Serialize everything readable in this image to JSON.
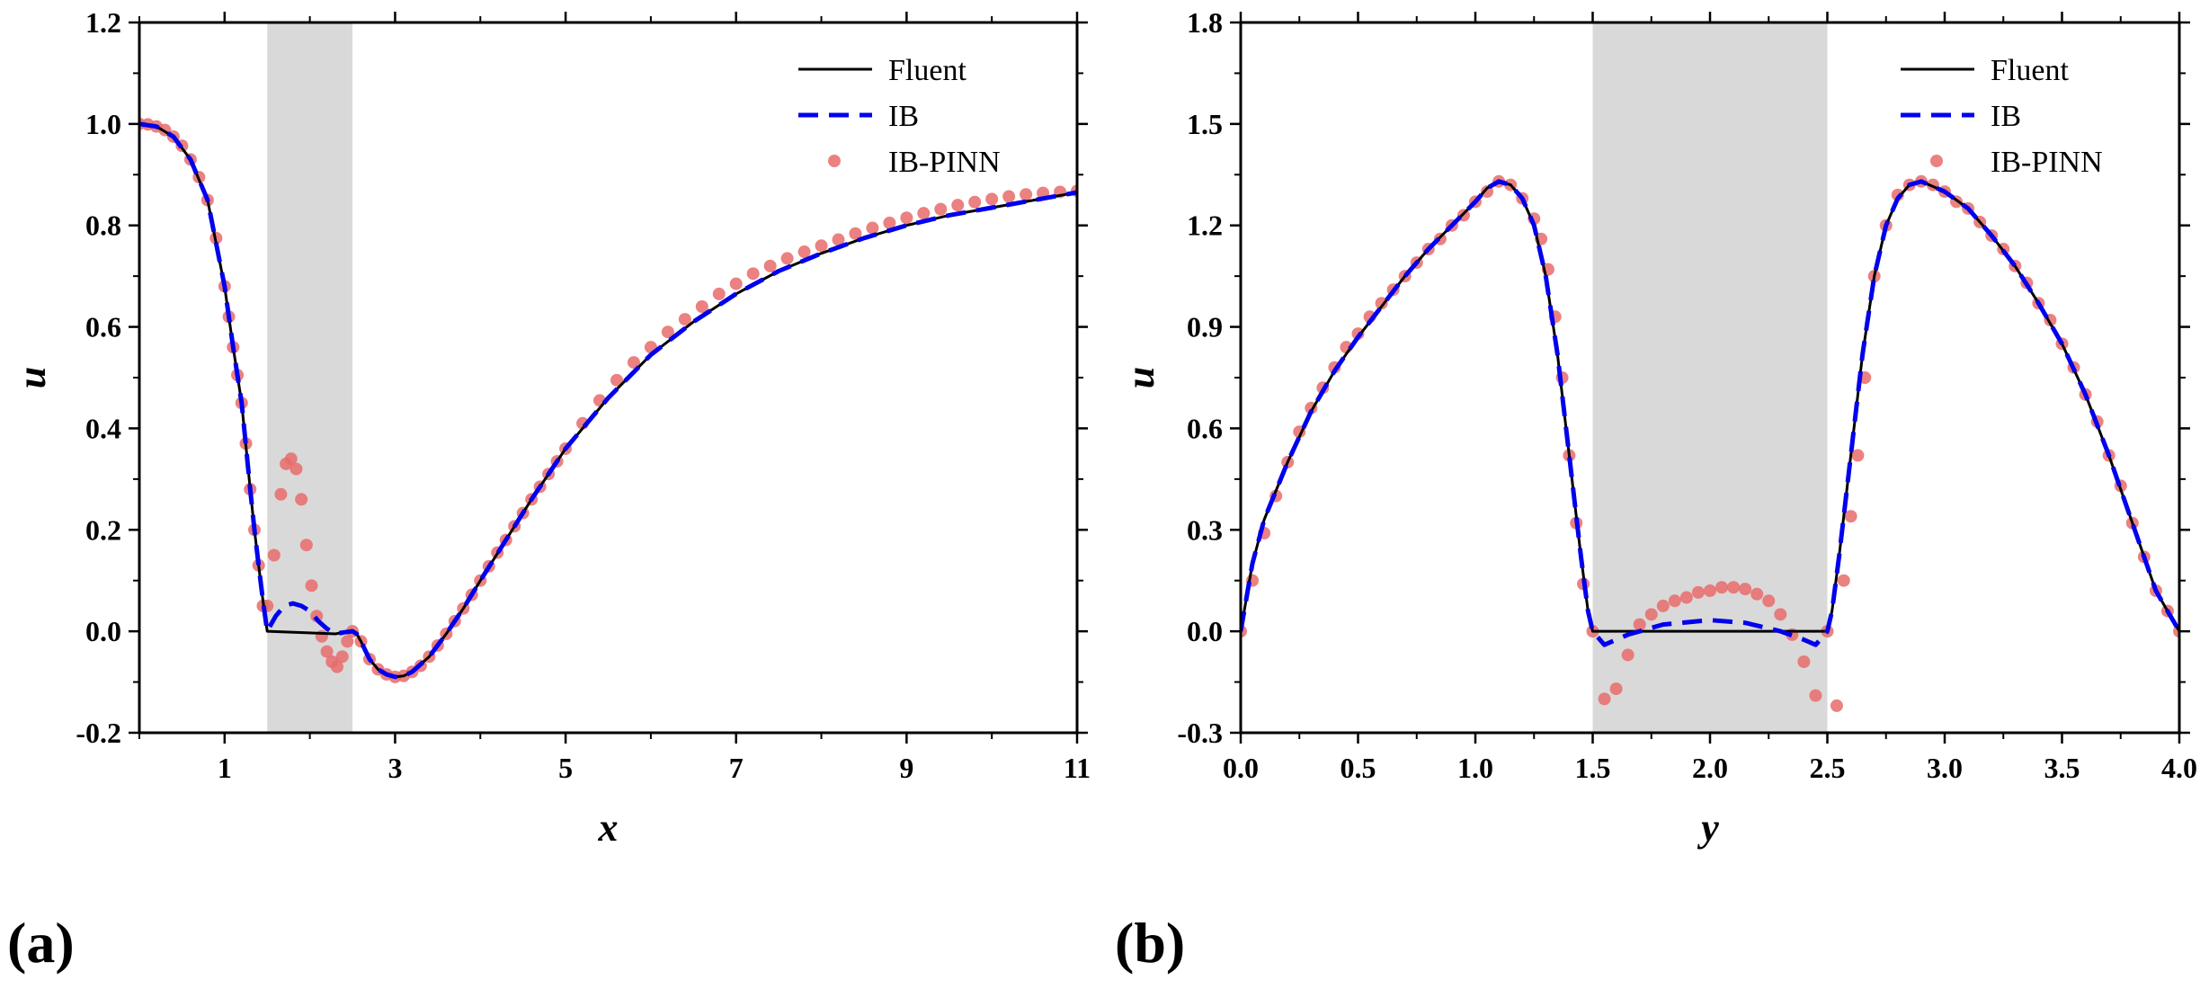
{
  "colors": {
    "fluent": "#000000",
    "ib": "#0000ee",
    "ibpinn": "#e86b6b",
    "shade": "#d9d9d9"
  },
  "panels": {
    "a": "(a)",
    "b": "(b)"
  },
  "chart_data": [
    {
      "id": "a",
      "type": "line",
      "xlabel": "x",
      "ylabel": "u",
      "xlim": [
        0,
        11
      ],
      "ylim": [
        -0.2,
        1.2
      ],
      "xticks": [
        1,
        3,
        5,
        7,
        9,
        11
      ],
      "xtick_labels": [
        "1",
        "3",
        "5",
        "7",
        "9",
        "11"
      ],
      "yticks": [
        -0.2,
        0.0,
        0.2,
        0.4,
        0.6,
        0.8,
        1.0,
        1.2
      ],
      "ytick_labels": [
        "-0.2",
        "0.0",
        "0.2",
        "0.4",
        "0.6",
        "0.8",
        "1.0",
        "1.2"
      ],
      "shaded_region": [
        1.5,
        2.5
      ],
      "legend": {
        "position": "top-right",
        "entries": [
          "Fluent",
          "IB",
          "IB-PINN"
        ]
      },
      "series": [
        {
          "name": "Fluent",
          "style": "solid",
          "x": [
            0,
            0.2,
            0.4,
            0.6,
            0.8,
            1.0,
            1.1,
            1.2,
            1.3,
            1.35,
            1.4,
            1.45,
            1.5,
            2.3,
            2.4,
            2.5,
            2.55,
            2.6,
            2.7,
            2.8,
            2.9,
            3.0,
            3.1,
            3.2,
            3.4,
            3.6,
            3.8,
            4.0,
            4.3,
            4.6,
            5.0,
            5.5,
            6.0,
            6.5,
            7.0,
            7.5,
            8.0,
            8.5,
            9.0,
            9.5,
            10.0,
            10.5,
            11.0
          ],
          "y": [
            1.0,
            0.995,
            0.975,
            0.93,
            0.85,
            0.68,
            0.56,
            0.45,
            0.28,
            0.2,
            0.13,
            0.06,
            0.0,
            -0.005,
            -0.002,
            0.0,
            -0.005,
            -0.02,
            -0.055,
            -0.075,
            -0.085,
            -0.09,
            -0.088,
            -0.08,
            -0.05,
            -0.005,
            0.045,
            0.1,
            0.18,
            0.26,
            0.36,
            0.46,
            0.545,
            0.61,
            0.665,
            0.71,
            0.745,
            0.775,
            0.8,
            0.82,
            0.835,
            0.85,
            0.865
          ]
        },
        {
          "name": "IB",
          "style": "dashed",
          "x": [
            0,
            0.2,
            0.4,
            0.6,
            0.8,
            1.0,
            1.1,
            1.2,
            1.3,
            1.35,
            1.4,
            1.45,
            1.5,
            1.6,
            1.7,
            1.8,
            1.9,
            2.0,
            2.1,
            2.2,
            2.3,
            2.4,
            2.5,
            2.55,
            2.6,
            2.7,
            2.8,
            2.9,
            3.0,
            3.1,
            3.2,
            3.4,
            3.6,
            3.8,
            4.0,
            4.3,
            4.6,
            5.0,
            5.5,
            6.0,
            6.5,
            7.0,
            7.5,
            8.0,
            8.5,
            9.0,
            9.5,
            10.0,
            10.5,
            11.0
          ],
          "y": [
            1.0,
            0.995,
            0.975,
            0.93,
            0.85,
            0.68,
            0.56,
            0.45,
            0.28,
            0.2,
            0.13,
            0.06,
            0.0,
            0.03,
            0.05,
            0.055,
            0.05,
            0.04,
            0.02,
            0.005,
            -0.005,
            -0.002,
            0.0,
            -0.005,
            -0.02,
            -0.055,
            -0.075,
            -0.085,
            -0.09,
            -0.088,
            -0.08,
            -0.05,
            -0.005,
            0.045,
            0.1,
            0.18,
            0.26,
            0.36,
            0.46,
            0.545,
            0.61,
            0.665,
            0.71,
            0.745,
            0.775,
            0.8,
            0.82,
            0.835,
            0.85,
            0.865
          ]
        },
        {
          "name": "IB-PINN",
          "style": "markers",
          "x": [
            0,
            0.1,
            0.2,
            0.3,
            0.4,
            0.5,
            0.6,
            0.7,
            0.8,
            0.9,
            1.0,
            1.05,
            1.1,
            1.15,
            1.2,
            1.25,
            1.3,
            1.35,
            1.4,
            1.45,
            1.5,
            1.58,
            1.66,
            1.72,
            1.78,
            1.84,
            1.9,
            1.96,
            2.02,
            2.08,
            2.14,
            2.2,
            2.26,
            2.32,
            2.38,
            2.44,
            2.5,
            2.6,
            2.7,
            2.8,
            2.9,
            3.0,
            3.1,
            3.2,
            3.3,
            3.4,
            3.5,
            3.6,
            3.7,
            3.8,
            3.9,
            4.0,
            4.1,
            4.2,
            4.3,
            4.4,
            4.5,
            4.6,
            4.7,
            4.8,
            4.9,
            5.0,
            5.2,
            5.4,
            5.6,
            5.8,
            6.0,
            6.2,
            6.4,
            6.6,
            6.8,
            7.0,
            7.2,
            7.4,
            7.6,
            7.8,
            8.0,
            8.2,
            8.4,
            8.6,
            8.8,
            9.0,
            9.2,
            9.4,
            9.6,
            9.8,
            10.0,
            10.2,
            10.4,
            10.6,
            10.8,
            11.0
          ],
          "y": [
            1.0,
            0.999,
            0.995,
            0.988,
            0.975,
            0.957,
            0.93,
            0.895,
            0.85,
            0.775,
            0.68,
            0.62,
            0.56,
            0.505,
            0.45,
            0.37,
            0.28,
            0.2,
            0.13,
            0.05,
            0.05,
            0.15,
            0.27,
            0.33,
            0.34,
            0.32,
            0.26,
            0.17,
            0.09,
            0.03,
            -0.01,
            -0.04,
            -0.06,
            -0.07,
            -0.05,
            -0.02,
            0.0,
            -0.02,
            -0.055,
            -0.075,
            -0.085,
            -0.09,
            -0.088,
            -0.08,
            -0.068,
            -0.05,
            -0.028,
            -0.005,
            0.02,
            0.045,
            0.072,
            0.1,
            0.128,
            0.155,
            0.18,
            0.207,
            0.233,
            0.26,
            0.285,
            0.31,
            0.335,
            0.36,
            0.41,
            0.455,
            0.495,
            0.53,
            0.56,
            0.59,
            0.615,
            0.64,
            0.665,
            0.685,
            0.705,
            0.72,
            0.735,
            0.748,
            0.76,
            0.772,
            0.784,
            0.795,
            0.805,
            0.815,
            0.824,
            0.832,
            0.84,
            0.846,
            0.852,
            0.857,
            0.861,
            0.864,
            0.866,
            0.868
          ]
        }
      ]
    },
    {
      "id": "b",
      "type": "line",
      "xlabel": "y",
      "ylabel": "u",
      "xlim": [
        0,
        4
      ],
      "ylim": [
        -0.3,
        1.8
      ],
      "xticks": [
        0,
        0.5,
        1.0,
        1.5,
        2.0,
        2.5,
        3.0,
        3.5,
        4.0
      ],
      "xtick_labels": [
        "0.0",
        "0.5",
        "1.0",
        "1.5",
        "2.0",
        "2.5",
        "3.0",
        "3.5",
        "4.0"
      ],
      "yticks": [
        -0.3,
        0.0,
        0.3,
        0.6,
        0.9,
        1.2,
        1.5,
        1.8
      ],
      "ytick_labels": [
        "-0.3",
        "0.0",
        "0.3",
        "0.6",
        "0.9",
        "1.2",
        "1.5",
        "1.8"
      ],
      "shaded_region": [
        1.5,
        2.5
      ],
      "legend": {
        "position": "top-right",
        "entries": [
          "Fluent",
          "IB",
          "IB-PINN"
        ]
      },
      "series": [
        {
          "name": "Fluent",
          "style": "solid",
          "x": [
            0,
            0.05,
            0.1,
            0.2,
            0.3,
            0.4,
            0.5,
            0.6,
            0.7,
            0.8,
            0.9,
            1.0,
            1.05,
            1.1,
            1.15,
            1.2,
            1.25,
            1.3,
            1.35,
            1.4,
            1.45,
            1.48,
            1.5,
            2.5,
            2.52,
            2.55,
            2.6,
            2.65,
            2.7,
            2.75,
            2.8,
            2.85,
            2.9,
            3.0,
            3.1,
            3.2,
            3.3,
            3.4,
            3.5,
            3.6,
            3.7,
            3.8,
            3.9,
            3.95,
            4.0
          ],
          "y": [
            0.0,
            0.2,
            0.33,
            0.5,
            0.65,
            0.77,
            0.87,
            0.96,
            1.05,
            1.13,
            1.2,
            1.27,
            1.31,
            1.33,
            1.32,
            1.28,
            1.2,
            1.05,
            0.82,
            0.52,
            0.22,
            0.06,
            0.0,
            0.0,
            0.06,
            0.22,
            0.52,
            0.82,
            1.05,
            1.2,
            1.28,
            1.32,
            1.33,
            1.3,
            1.25,
            1.17,
            1.08,
            0.97,
            0.85,
            0.7,
            0.52,
            0.32,
            0.12,
            0.06,
            0.0
          ]
        },
        {
          "name": "IB",
          "style": "dashed",
          "x": [
            0,
            0.05,
            0.1,
            0.2,
            0.3,
            0.4,
            0.5,
            0.6,
            0.7,
            0.8,
            0.9,
            1.0,
            1.05,
            1.1,
            1.15,
            1.2,
            1.25,
            1.3,
            1.35,
            1.4,
            1.45,
            1.48,
            1.5,
            1.55,
            1.65,
            1.8,
            2.0,
            2.15,
            2.3,
            2.4,
            2.45,
            2.5,
            2.52,
            2.55,
            2.6,
            2.65,
            2.7,
            2.75,
            2.8,
            2.85,
            2.9,
            3.0,
            3.1,
            3.2,
            3.3,
            3.4,
            3.5,
            3.6,
            3.7,
            3.8,
            3.9,
            3.95,
            4.0
          ],
          "y": [
            0.0,
            0.2,
            0.33,
            0.5,
            0.65,
            0.77,
            0.87,
            0.96,
            1.05,
            1.13,
            1.2,
            1.27,
            1.31,
            1.33,
            1.32,
            1.28,
            1.2,
            1.05,
            0.82,
            0.52,
            0.22,
            0.06,
            0.0,
            -0.04,
            -0.01,
            0.02,
            0.033,
            0.025,
            0.0,
            -0.025,
            -0.04,
            0.0,
            0.06,
            0.22,
            0.52,
            0.82,
            1.05,
            1.2,
            1.28,
            1.32,
            1.33,
            1.3,
            1.25,
            1.17,
            1.08,
            0.97,
            0.85,
            0.7,
            0.52,
            0.32,
            0.12,
            0.06,
            0.0
          ]
        },
        {
          "name": "IB-PINN",
          "style": "markers",
          "x": [
            0,
            0.05,
            0.1,
            0.15,
            0.2,
            0.25,
            0.3,
            0.35,
            0.4,
            0.45,
            0.5,
            0.55,
            0.6,
            0.65,
            0.7,
            0.75,
            0.8,
            0.85,
            0.9,
            0.95,
            1.0,
            1.05,
            1.1,
            1.15,
            1.2,
            1.25,
            1.28,
            1.31,
            1.34,
            1.37,
            1.4,
            1.43,
            1.46,
            1.5,
            1.55,
            1.6,
            1.65,
            1.7,
            1.75,
            1.8,
            1.85,
            1.9,
            1.95,
            2.0,
            2.05,
            2.1,
            2.15,
            2.2,
            2.25,
            2.3,
            2.35,
            2.4,
            2.45,
            2.5,
            2.54,
            2.57,
            2.6,
            2.63,
            2.66,
            2.7,
            2.75,
            2.8,
            2.85,
            2.9,
            2.95,
            3.0,
            3.05,
            3.1,
            3.15,
            3.2,
            3.25,
            3.3,
            3.35,
            3.4,
            3.45,
            3.5,
            3.55,
            3.6,
            3.65,
            3.7,
            3.75,
            3.8,
            3.85,
            3.9,
            3.95,
            4.0
          ],
          "y": [
            0.0,
            0.15,
            0.29,
            0.4,
            0.5,
            0.59,
            0.66,
            0.72,
            0.78,
            0.84,
            0.88,
            0.93,
            0.97,
            1.01,
            1.05,
            1.09,
            1.13,
            1.16,
            1.2,
            1.23,
            1.27,
            1.3,
            1.33,
            1.32,
            1.28,
            1.22,
            1.16,
            1.07,
            0.93,
            0.75,
            0.52,
            0.32,
            0.14,
            0.0,
            -0.2,
            -0.17,
            -0.07,
            0.02,
            0.05,
            0.075,
            0.09,
            0.1,
            0.115,
            0.12,
            0.13,
            0.13,
            0.125,
            0.11,
            0.09,
            0.05,
            -0.01,
            -0.09,
            -0.19,
            0.0,
            -0.22,
            0.15,
            0.34,
            0.52,
            0.75,
            1.05,
            1.2,
            1.29,
            1.32,
            1.33,
            1.32,
            1.3,
            1.27,
            1.25,
            1.21,
            1.17,
            1.13,
            1.08,
            1.03,
            0.97,
            0.92,
            0.85,
            0.78,
            0.7,
            0.62,
            0.52,
            0.43,
            0.32,
            0.22,
            0.12,
            0.06,
            0.0
          ]
        }
      ]
    }
  ]
}
